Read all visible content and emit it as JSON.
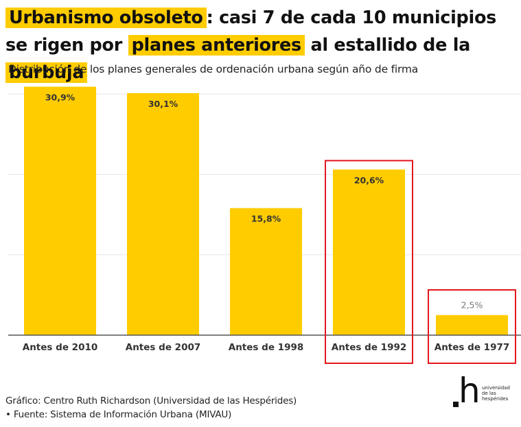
{
  "title": {
    "part1": "Urbanismo obsoleto",
    "part2": ": casi 7 de cada 10 municipios se rigen por ",
    "part3": "planes anteriores",
    "part4": " al estallido de la ",
    "part5": "burbuja"
  },
  "subtitle": "Distribución de los planes generales de ordenación urbana según año de firma",
  "colors": {
    "bar": "#ffcc00",
    "highlight": "#ffcc00",
    "annotation_box": "#e3161b",
    "gridline": "#e6e6e6",
    "axis": "#555555",
    "label_dark": "#333333",
    "label_muted": "#777777"
  },
  "chart_data": {
    "type": "bar",
    "title": "Distribución de los planes generales de ordenación urbana según año de firma",
    "xlabel": "",
    "ylabel": "",
    "categories": [
      "Antes de 2010",
      "Antes de 2007",
      "Antes de 1998",
      "Antes de 1992",
      "Antes de 1977"
    ],
    "values": [
      30.9,
      30.1,
      15.8,
      20.6,
      2.5
    ],
    "value_labels": [
      "30,9%",
      "30,1%",
      "15,8%",
      "20,6%",
      "2,5%"
    ],
    "ylim": [
      0,
      30.9
    ],
    "gridlines": [
      10,
      20,
      30
    ],
    "grid": true,
    "highlighted_categories": [
      "Antes de 1992",
      "Antes de 1977"
    ],
    "y_tick_labels_visible": false
  },
  "footer": {
    "credit": "Gráfico: Centro Ruth Richardson (Universidad de las Hespérides)",
    "source": "• Fuente: Sistema de Información Urbana (MIVAU)"
  },
  "logo": {
    "mark": "h",
    "lines": [
      "universidad",
      "de las",
      "hespérides"
    ]
  }
}
